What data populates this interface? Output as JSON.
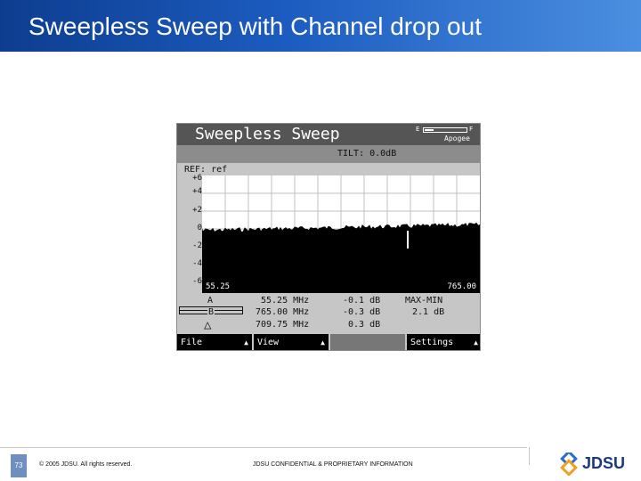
{
  "slide": {
    "title": "Sweepless Sweep with Channel drop out",
    "page_number": "73",
    "copyright": "© 2005 JDSU. All rights reserved.",
    "confidential": "JDSU CONFIDENTIAL & PROPRIETARY INFORMATION",
    "logo_text": "JDSU"
  },
  "device": {
    "title": "Sweepless Sweep",
    "brand": "Apogee",
    "battery_empty": "E",
    "battery_full": "F",
    "tilt": "TILT: 0.0dB",
    "ref": "REF: ref",
    "y_ticks": [
      "+6",
      "+4",
      "+2",
      "0",
      "-2",
      "-4",
      "-6"
    ],
    "x_start": "55.25",
    "x_end": "765.00",
    "markers": [
      {
        "label": "A",
        "freq": "55.25 MHz",
        "level": "-0.1 dB"
      },
      {
        "label": "B",
        "freq": "765.00 MHz",
        "level": "-0.3 dB"
      },
      {
        "label": "△",
        "freq": "709.75 MHz",
        "level": "0.3 dB"
      }
    ],
    "maxmin_label": "MAX-MIN",
    "maxmin_value": "2.1 dB",
    "softkeys": [
      {
        "label": "File",
        "arrow": "▲"
      },
      {
        "label": "View",
        "arrow": "▲"
      },
      {
        "label": "",
        "arrow": ""
      },
      {
        "label": "Settings",
        "arrow": "▲"
      }
    ],
    "colors": {
      "trace_fill": "#000000",
      "plot_bg": "#ffffff",
      "grid": "#c0c0c0"
    }
  }
}
